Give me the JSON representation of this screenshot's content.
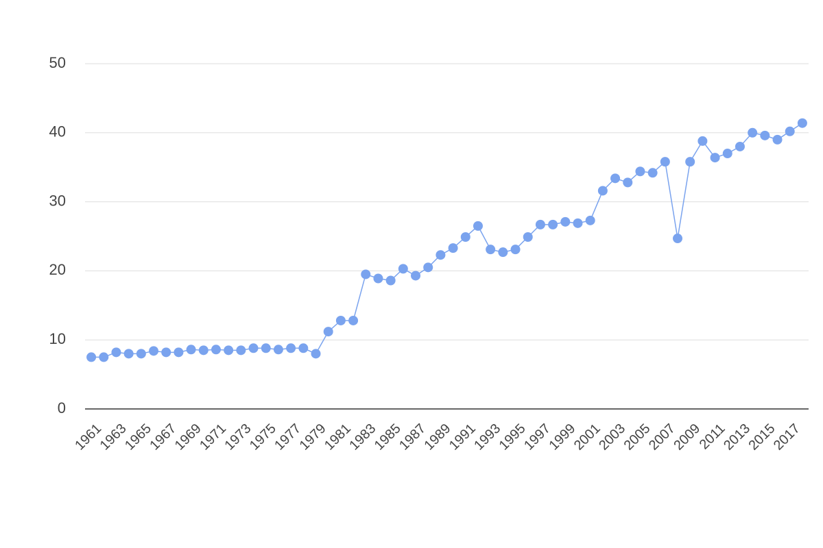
{
  "chart_data": {
    "type": "line",
    "categories": [
      "1961",
      null,
      "1963",
      null,
      "1965",
      null,
      "1967",
      null,
      "1969",
      null,
      "1971",
      null,
      "1973",
      null,
      "1975",
      null,
      "1977",
      null,
      "1979",
      null,
      "1981",
      null,
      "1983",
      null,
      "1985",
      null,
      "1987",
      null,
      "1989",
      null,
      "1991",
      null,
      "1993",
      null,
      "1995",
      null,
      "1997",
      null,
      "1999",
      null,
      "2001",
      null,
      "2003",
      null,
      "2005",
      null,
      "2007",
      null,
      "2009",
      null,
      "2011",
      null,
      "2013",
      null,
      "2015",
      null,
      "2017",
      null
    ],
    "series": [
      {
        "color": "#7aa3ee",
        "values": [
          7.5,
          7.5,
          8.2,
          8.0,
          8.0,
          8.4,
          8.2,
          8.2,
          8.6,
          8.5,
          8.6,
          8.5,
          8.5,
          8.8,
          8.8,
          8.6,
          8.8,
          8.8,
          8.0,
          11.2,
          12.8,
          12.8,
          19.5,
          18.9,
          18.6,
          20.3,
          19.3,
          20.5,
          22.3,
          23.3,
          24.9,
          26.5,
          23.1,
          22.7,
          23.1,
          24.9,
          26.7,
          26.7,
          27.1,
          26.9,
          27.3,
          31.6,
          33.4,
          32.8,
          34.4,
          34.2,
          35.8,
          24.7,
          35.8,
          38.8,
          36.4,
          37.0,
          38.0,
          40.0,
          39.6,
          39.0,
          40.2,
          41.4
        ]
      }
    ],
    "ylim": [
      0,
      50
    ],
    "yticks": [
      0,
      10,
      20,
      30,
      40,
      50
    ],
    "grid": true
  }
}
